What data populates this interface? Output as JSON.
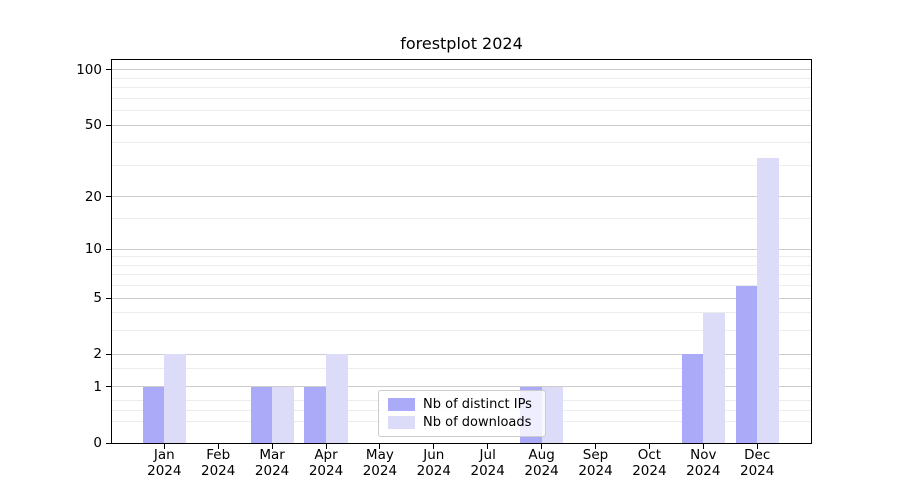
{
  "chart_data": {
    "type": "bar",
    "title": "forestplot 2024",
    "categories": [
      "Jan",
      "Feb",
      "Mar",
      "Apr",
      "May",
      "Jun",
      "Jul",
      "Aug",
      "Sep",
      "Oct",
      "Nov",
      "Dec"
    ],
    "category_year": "2024",
    "series": [
      {
        "name": "Nb of distinct IPs",
        "color": "#aaaaf8",
        "values": [
          1,
          0,
          1,
          1,
          0,
          0,
          0,
          1,
          0,
          0,
          2,
          6
        ]
      },
      {
        "name": "Nb of downloads",
        "color": "#dcdcf8",
        "values": [
          2,
          0,
          1,
          2,
          0,
          0,
          0,
          1,
          0,
          0,
          4,
          33
        ]
      }
    ],
    "xlabel": "",
    "ylabel": "",
    "yscale": "log1p",
    "ylim": [
      0,
      113
    ],
    "y_major_ticks": [
      0,
      1,
      2,
      5,
      10,
      20,
      50,
      100
    ],
    "y_minor_ticks": [
      0.3,
      0.5,
      0.7,
      1.5,
      3,
      4,
      6,
      7,
      8,
      9,
      15,
      30,
      40,
      60,
      70,
      80,
      90
    ],
    "grid": "horizontal major+minor",
    "legend_position": "lower center"
  },
  "colors": {
    "major_grid": "#cccccc",
    "minor_grid": "#ececec",
    "axis": "#000000",
    "legend_border": "#cccccc",
    "legend_face": "rgba(255,255,255,0.8)",
    "background": "#ffffff"
  }
}
